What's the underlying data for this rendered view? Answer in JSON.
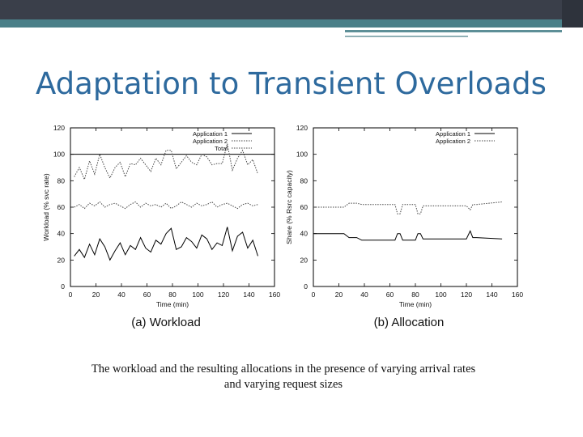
{
  "slide": {
    "title": "Adaptation to Transient Overloads",
    "caption_line1": "The workload and the resulting allocations in the presence of varying arrival rates",
    "caption_line2": "and varying request sizes",
    "accent_color": "#2e6a9e",
    "bar_color": "#3a3f4a",
    "teal_color": "#4a7f88"
  },
  "chart_data": [
    {
      "type": "line",
      "panel_label": "(a) Workload",
      "xlabel": "Time (min)",
      "ylabel": "Workload (% svc rate)",
      "xlim": [
        0,
        160
      ],
      "ylim": [
        0,
        120
      ],
      "x_ticks": [
        0,
        20,
        40,
        60,
        80,
        100,
        120,
        140,
        160
      ],
      "y_ticks": [
        0,
        20,
        40,
        60,
        80,
        100,
        120
      ],
      "reference_line_y": 100,
      "legend_position": "top-right",
      "series": [
        {
          "name": "Application 1",
          "style": "solid",
          "x": [
            3,
            7,
            11,
            15,
            19,
            23,
            27,
            31,
            35,
            39,
            43,
            47,
            51,
            55,
            59,
            63,
            67,
            71,
            75,
            79,
            83,
            87,
            91,
            95,
            99,
            103,
            107,
            111,
            115,
            119,
            123,
            127,
            131,
            135,
            139,
            143,
            147
          ],
          "values": [
            23,
            28,
            22,
            32,
            24,
            36,
            30,
            20,
            27,
            33,
            24,
            31,
            28,
            37,
            29,
            26,
            35,
            32,
            40,
            44,
            28,
            30,
            37,
            34,
            29,
            39,
            36,
            28,
            33,
            31,
            45,
            27,
            38,
            41,
            29,
            35,
            23
          ]
        },
        {
          "name": "Application 2",
          "style": "dotted",
          "x": [
            3,
            7,
            11,
            15,
            19,
            23,
            27,
            31,
            35,
            39,
            43,
            47,
            51,
            55,
            59,
            63,
            67,
            71,
            75,
            79,
            83,
            87,
            91,
            95,
            99,
            103,
            107,
            111,
            115,
            119,
            123,
            127,
            131,
            135,
            139,
            143,
            147
          ],
          "values": [
            60,
            62,
            59,
            63,
            61,
            64,
            60,
            62,
            63,
            61,
            59,
            62,
            64,
            60,
            63,
            61,
            62,
            60,
            63,
            59,
            61,
            64,
            62,
            60,
            63,
            61,
            62,
            64,
            60,
            62,
            63,
            61,
            59,
            62,
            63,
            61,
            62
          ]
        },
        {
          "name": "Total",
          "style": "dotted",
          "x": [
            3,
            7,
            11,
            15,
            19,
            23,
            27,
            31,
            35,
            39,
            43,
            47,
            51,
            55,
            59,
            63,
            67,
            71,
            75,
            79,
            83,
            87,
            91,
            95,
            99,
            103,
            107,
            111,
            115,
            119,
            123,
            127,
            131,
            135,
            139,
            143,
            147
          ],
          "values": [
            83,
            90,
            81,
            95,
            85,
            100,
            90,
            82,
            90,
            94,
            83,
            93,
            92,
            97,
            92,
            87,
            97,
            92,
            103,
            103,
            89,
            94,
            99,
            94,
            92,
            100,
            98,
            92,
            93,
            93,
            108,
            88,
            97,
            103,
            92,
            96,
            85
          ]
        }
      ]
    },
    {
      "type": "line",
      "panel_label": "(b) Allocation",
      "xlabel": "Time (min)",
      "ylabel": "Share (% Rsrc capacity)",
      "xlim": [
        0,
        160
      ],
      "ylim": [
        0,
        120
      ],
      "x_ticks": [
        0,
        20,
        40,
        60,
        80,
        100,
        120,
        140,
        160
      ],
      "y_ticks": [
        0,
        20,
        40,
        60,
        80,
        100,
        120
      ],
      "legend_position": "top-right",
      "series": [
        {
          "name": "Application 1",
          "style": "solid",
          "x": [
            0,
            24,
            28,
            34,
            38,
            64,
            66,
            68,
            70,
            80,
            82,
            84,
            86,
            120,
            123,
            125,
            128,
            148
          ],
          "values": [
            40,
            40,
            37,
            37,
            35,
            35,
            40,
            40,
            35,
            35,
            40,
            40,
            36,
            36,
            42,
            37,
            37,
            36
          ]
        },
        {
          "name": "Application 2",
          "style": "dotted",
          "x": [
            0,
            24,
            28,
            34,
            38,
            64,
            66,
            68,
            70,
            80,
            82,
            84,
            86,
            120,
            123,
            125,
            128,
            148
          ],
          "values": [
            60,
            60,
            63,
            63,
            62,
            62,
            55,
            55,
            62,
            62,
            55,
            55,
            61,
            61,
            58,
            62,
            62,
            64
          ]
        }
      ]
    }
  ]
}
